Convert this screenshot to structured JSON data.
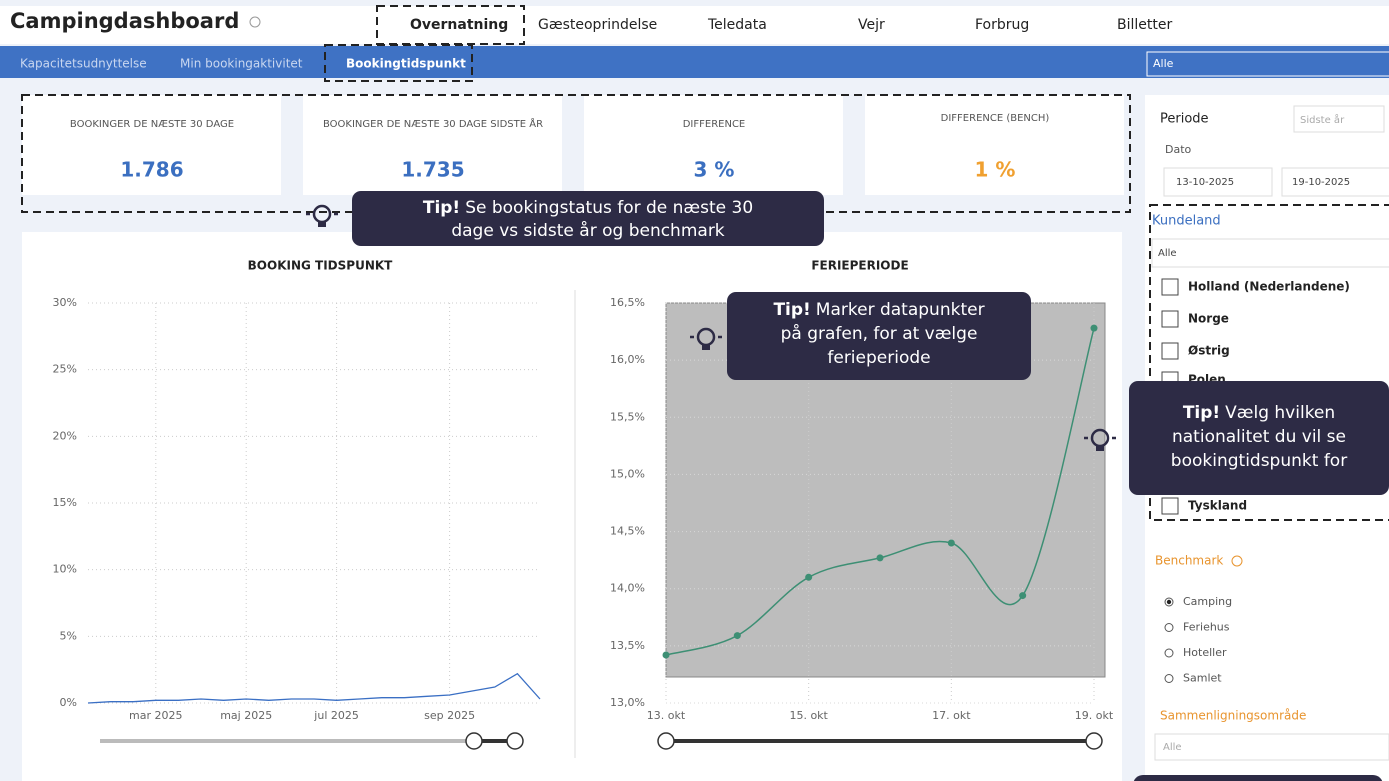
{
  "header": {
    "title": "Campingdashboard",
    "nav": [
      "Overnatning",
      "Gæsteoprindelse",
      "Teledata",
      "Vejr",
      "Forbrug",
      "Billetter"
    ]
  },
  "tabs": [
    "Kapacitetsudnyttelse",
    "Min bookingaktivitet",
    "Bookingtidspunkt"
  ],
  "tab_filter": "Alle",
  "kpis": [
    {
      "label": "BOOKINGER DE NÆSTE 30 DAGE",
      "value": "1.786"
    },
    {
      "label": "BOOKINGER DE NÆSTE 30 DAGE SIDSTE ÅR",
      "value": "1.735"
    },
    {
      "label": "DIFFERENCE",
      "value": "3 %"
    },
    {
      "label": "DIFFERENCE (BENCH)",
      "value": "1 %"
    }
  ],
  "tips": [
    {
      "bold": "Tip!",
      "lines": [
        "Se bookingstatus for de næste 30",
        "dage vs sidste år og benchmark"
      ]
    },
    {
      "bold": "Tip!",
      "lines": [
        "Marker datapunkter",
        "på grafen, for at vælge",
        "ferieperiode"
      ]
    },
    {
      "bold": "Tip!",
      "lines": [
        "Vælg hvilken",
        "nationalitet du vil se",
        "bookingtidspunkt for"
      ]
    }
  ],
  "filters": {
    "periode_label": "Periode",
    "periode_value": "Sidste år",
    "dato_label": "Dato",
    "dato_from": "13-10-2025",
    "dato_to": "19-10-2025",
    "kundeland_label": "Kundeland",
    "kundeland_search": "Alle",
    "countries": [
      "Holland (Nederlandene)",
      "Norge",
      "Østrig",
      "Polen",
      "Tyskland"
    ],
    "benchmark_label": "Benchmark",
    "benchmark_options": [
      "Camping",
      "Feriehus",
      "Hoteller",
      "Samlet"
    ],
    "benchmark_selected": 0,
    "area_label": "Sammenligningsområde",
    "area_value": "Alle"
  },
  "chart_data": [
    {
      "type": "line",
      "title": "BOOKING TIDSPUNKT",
      "categories": [
        null,
        null,
        null,
        "mar 2025",
        null,
        null,
        null,
        "maj 2025",
        null,
        null,
        null,
        "jul 2025",
        null,
        null,
        null,
        null,
        "sep 2025",
        null,
        null,
        null,
        null
      ],
      "series": [
        {
          "name": "Bookinger",
          "color": "#3a6fc4",
          "values": [
            0,
            0.1,
            0.1,
            0.2,
            0.2,
            0.3,
            0.2,
            0.3,
            0.2,
            0.3,
            0.3,
            0.2,
            0.3,
            0.4,
            0.4,
            0.5,
            0.6,
            0.9,
            1.2,
            2.2,
            0.3
          ]
        }
      ],
      "ylim": [
        0,
        30
      ],
      "yticks": [
        {
          "value": 0,
          "label": "0%"
        },
        {
          "value": 5,
          "label": "5%"
        },
        {
          "value": 10,
          "label": "10%"
        },
        {
          "value": 15,
          "label": "15%"
        },
        {
          "value": 20,
          "label": "20%"
        },
        {
          "value": 25,
          "label": "25%"
        },
        {
          "value": 30,
          "label": "30%"
        }
      ],
      "grid": true
    },
    {
      "type": "line",
      "title": "FERIEPERIODE",
      "categories": [
        "13. okt",
        null,
        "15. okt",
        null,
        "17. okt",
        null,
        "19. okt"
      ],
      "series": [
        {
          "name": "Ferieperiode",
          "color": "#3d8f74",
          "values": [
            13.42,
            13.59,
            14.1,
            14.27,
            14.4,
            13.94,
            16.28
          ]
        }
      ],
      "ylim": [
        13.0,
        16.5
      ],
      "yticks": [
        {
          "value": 13.0,
          "label": "13,0%"
        },
        {
          "value": 13.5,
          "label": "13,5%"
        },
        {
          "value": 14.0,
          "label": "14,0%"
        },
        {
          "value": 14.5,
          "label": "14,5%"
        },
        {
          "value": 15.0,
          "label": "15,0%"
        },
        {
          "value": 15.5,
          "label": "15,5%"
        },
        {
          "value": 16.0,
          "label": "16,0%"
        },
        {
          "value": 16.5,
          "label": "16,5%"
        }
      ],
      "grid": true
    }
  ]
}
